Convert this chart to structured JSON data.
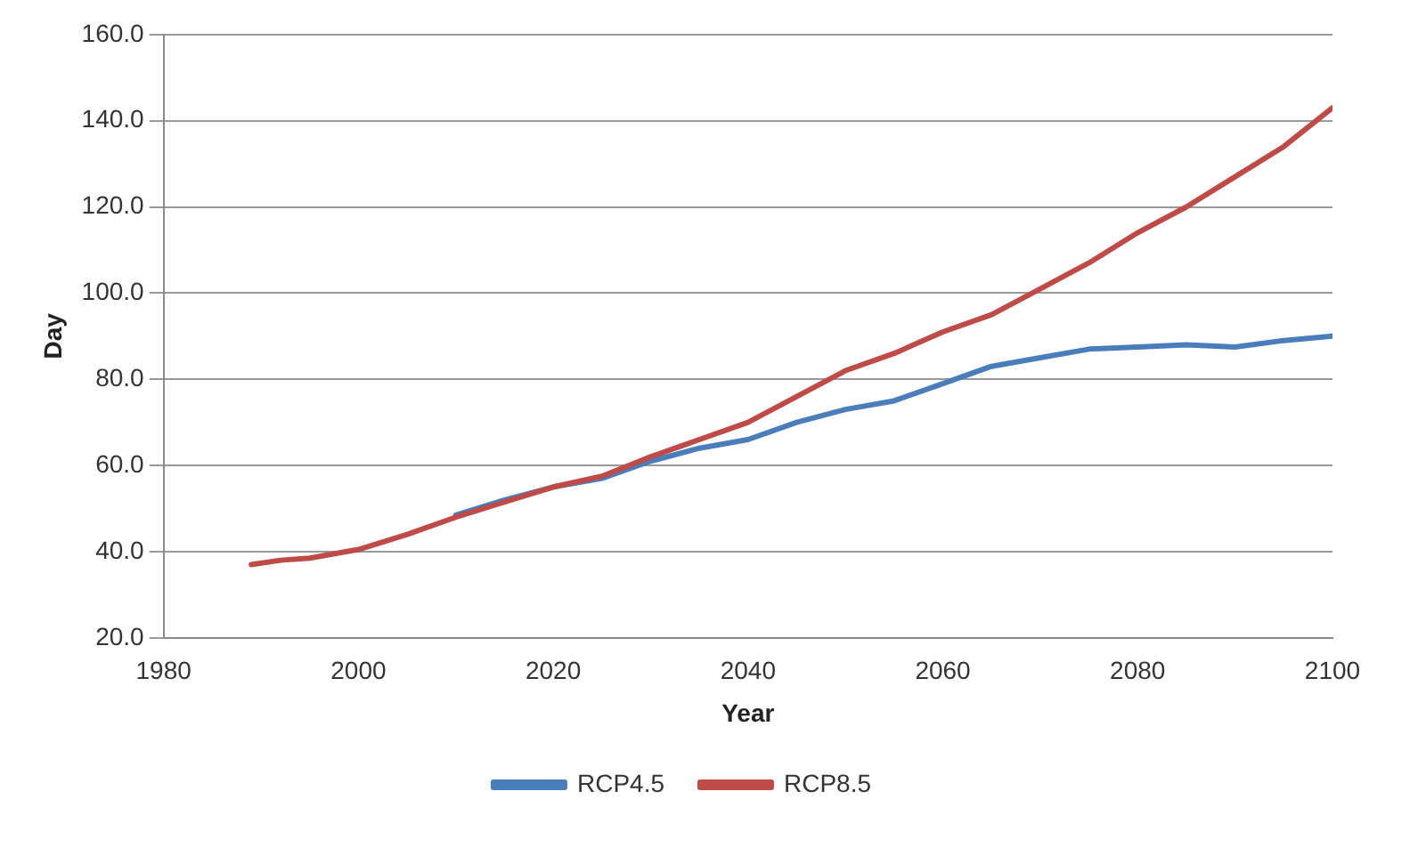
{
  "chart_data": {
    "type": "line",
    "xlabel": "Year",
    "ylabel": "Day",
    "x": [
      1989,
      1992,
      1995,
      2000,
      2005,
      2010,
      2015,
      2020,
      2025,
      2030,
      2035,
      2040,
      2045,
      2050,
      2055,
      2060,
      2065,
      2070,
      2075,
      2080,
      2085,
      2090,
      2095,
      2100
    ],
    "series": [
      {
        "name": "RCP4.5",
        "color": "#4a7ebb",
        "values": [
          null,
          null,
          null,
          null,
          null,
          48.5,
          52,
          55,
          57,
          61,
          64,
          66,
          70,
          73,
          75,
          79,
          83,
          85,
          87,
          87.5,
          88,
          87.5,
          89,
          90
        ]
      },
      {
        "name": "RCP8.5",
        "color": "#be4b48",
        "values": [
          37,
          38,
          38.5,
          40.5,
          44,
          48,
          51.5,
          55,
          57.5,
          62,
          66,
          70,
          76,
          82,
          86,
          91,
          95,
          101,
          107,
          114,
          120,
          127,
          134,
          143
        ]
      }
    ],
    "xlim": [
      1980,
      2100
    ],
    "xticks": [
      1980,
      2000,
      2020,
      2040,
      2060,
      2080,
      2100
    ],
    "ylim": [
      20,
      160
    ],
    "yticks": [
      {
        "value": 20,
        "label": "20.0"
      },
      {
        "value": 40,
        "label": "40.0"
      },
      {
        "value": 60,
        "label": "60.0"
      },
      {
        "value": 80,
        "label": "80.0"
      },
      {
        "value": 100,
        "label": "100.0"
      },
      {
        "value": 120,
        "label": "120.0"
      },
      {
        "value": 140,
        "label": "140.0"
      },
      {
        "value": 160,
        "label": "160.0"
      }
    ],
    "grid": "y",
    "legend": "bottom",
    "marker": "none",
    "line_style": "solid"
  }
}
